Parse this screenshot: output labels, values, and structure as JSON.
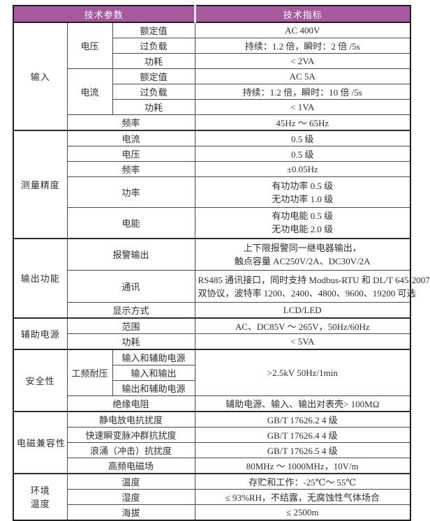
{
  "colors": {
    "header_bg": "#a7599f",
    "header_text": "#ffffff",
    "border_dark": "#1f1f1f",
    "border": "#4a4a4a",
    "text": "#2f2f2f"
  },
  "header": {
    "params_label": "技术参数",
    "indicators_label": "技术指标"
  },
  "input": {
    "label": "输入",
    "voltage": {
      "label": "电压",
      "rated_label": "额定值",
      "rated_value": "AC 400V",
      "overload_label": "过负载",
      "overload_value": "持续：1.2 倍，瞬时：2 倍 /5s",
      "consumption_label": "功耗",
      "consumption_value": "< 2VA"
    },
    "current": {
      "label": "电流",
      "rated_label": "额定值",
      "rated_value": "AC 5A",
      "overload_label": "过负载",
      "overload_value": "持续：1.2 倍，瞬时：10 倍 /5s",
      "consumption_label": "功耗",
      "consumption_value": "< 1VA"
    },
    "frequency_label": "频率",
    "frequency_value": "45Hz ～ 65Hz"
  },
  "accuracy": {
    "label": "测量精度",
    "current_label": "电流",
    "current_value": "0.5 级",
    "voltage_label": "电压",
    "voltage_value": "0.5 级",
    "frequency_label": "频率",
    "frequency_value": "±0.05Hz",
    "power_label": "功率",
    "power_value_line1": "有功功率 0.5 级",
    "power_value_line2": "无功功率 1.0 级",
    "energy_label": "电能",
    "energy_value_line1": "有功电能 0.5 级",
    "energy_value_line2": "无功电能 2.0 级"
  },
  "output": {
    "label": "输出功能",
    "alarm_label": "报警输出",
    "alarm_value_line1": "上下限报警同一继电器输出，",
    "alarm_value_line2": "触点容量 AC250V/2A、DC30V/2A",
    "comm_label": "通讯",
    "comm_value_line1": "RS485 通讯接口，同时支持 Modbus-RTU 和 DL/T 645-2007",
    "comm_value_line2": "双协议，波特率 1200、2400、4800、9600、19200 可选",
    "display_label": "显示方式",
    "display_value": "LCD/LED"
  },
  "aux_power": {
    "label": "辅助电源",
    "range_label": "范围",
    "range_value": "AC、DC85V ～ 265V，50Hz/60Hz",
    "consumption_label": "功耗",
    "consumption_value": "< 5VA"
  },
  "safety": {
    "label": "安全性",
    "withstand_label": "工频耐压",
    "withstand_row1": "输入和辅助电源",
    "withstand_row2": "输入和输出",
    "withstand_row3": "输出和辅助电源",
    "withstand_value": ">2.5kV 50Hz/1min",
    "insulation_label": "绝缘电阻",
    "insulation_value": "辅助电源、输入、输出对表壳> 100MΩ"
  },
  "emc": {
    "label": "电磁兼容性",
    "esd_label": "静电放电抗扰度",
    "esd_value": "GB/T 17626.2 4 级",
    "eft_label": "快速瞬变脉冲群抗扰度",
    "eft_value": "GB/T 17626.4 4 级",
    "surge_label": "浪涌（冲击）抗扰度",
    "surge_value": "GB/T 17626.5 4 级",
    "rf_label": "高频电磁场",
    "rf_value": "80MHz ～ 1000MHz，10V/m"
  },
  "environment": {
    "label_line1": "环境",
    "label_line2": "温度",
    "temp_label": "温度",
    "temp_value": "存贮和工作：-25℃～ 55℃",
    "humidity_label": "湿度",
    "humidity_value": "≤ 93%RH，不结露，无腐蚀性气体场合",
    "altitude_label": "海拔",
    "altitude_value": "≤ 2500m"
  }
}
